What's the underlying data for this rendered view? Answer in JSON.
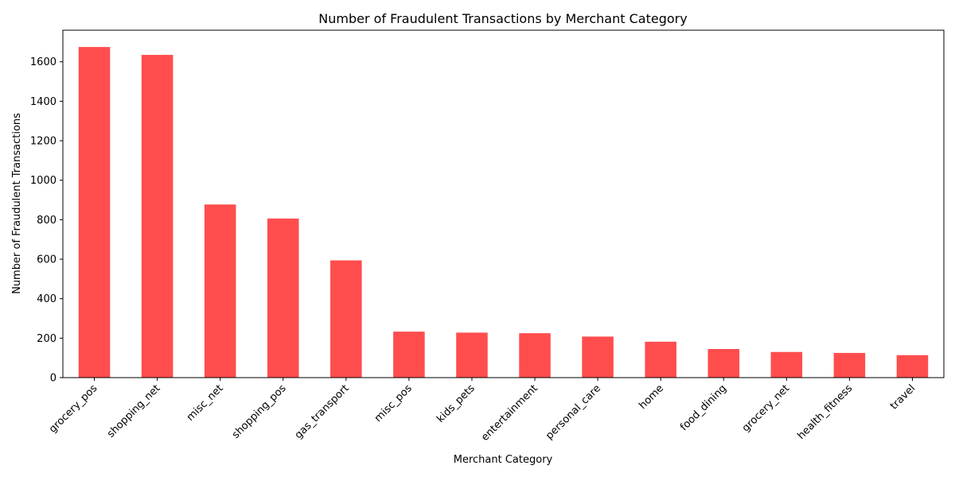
{
  "chart_data": {
    "type": "bar",
    "title": "Number of Fraudulent Transactions by Merchant Category",
    "xlabel": "Merchant Category",
    "ylabel": "Number of Fraudulent Transactions",
    "categories": [
      "grocery_pos",
      "shopping_net",
      "misc_net",
      "shopping_pos",
      "gas_transport",
      "misc_pos",
      "kids_pets",
      "entertainment",
      "personal_care",
      "home",
      "food_dining",
      "grocery_net",
      "health_fitness",
      "travel"
    ],
    "values": [
      1675,
      1635,
      877,
      806,
      594,
      233,
      228,
      225,
      208,
      182,
      145,
      130,
      125,
      114
    ],
    "ylim": [
      0,
      1760
    ],
    "yticks": [
      0,
      200,
      400,
      600,
      800,
      1000,
      1200,
      1400,
      1600
    ],
    "grid": false,
    "legend": "none",
    "bar_color": "#ff4d4d"
  }
}
